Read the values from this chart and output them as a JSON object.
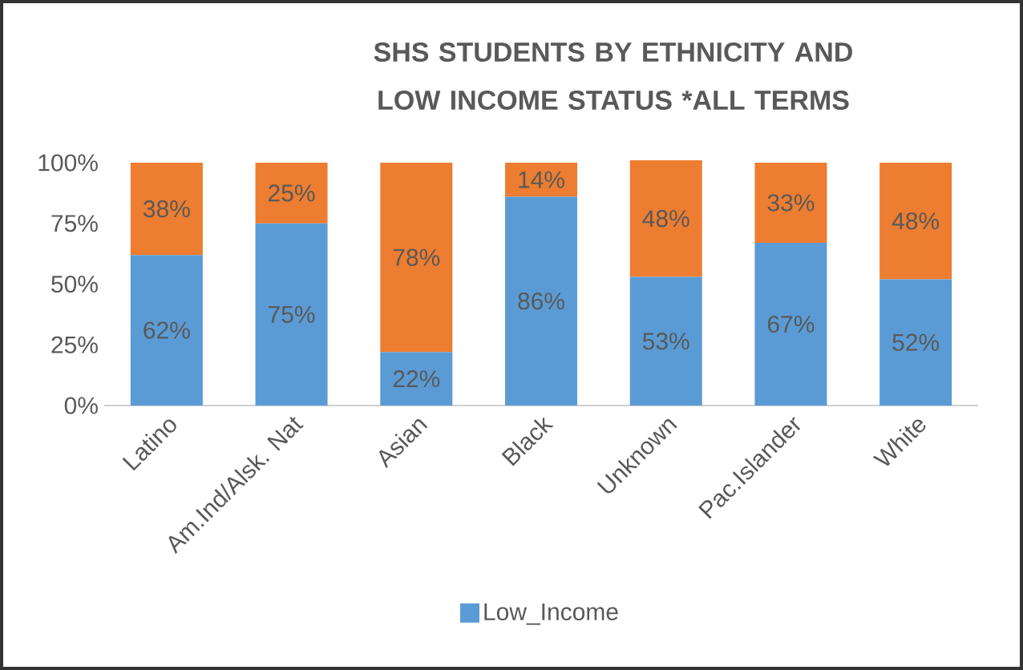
{
  "chart_data": {
    "type": "bar",
    "stacked": true,
    "title": "SHS STUDENTS BY ETHNICITY AND LOW INCOME STATUS *ALL TERMS",
    "categories": [
      "Latino",
      "Am.Ind/Alsk. Nat",
      "Asian",
      "Black",
      "Unknown",
      "Pac.Islander",
      "White"
    ],
    "series": [
      {
        "name": "Low_Income",
        "color": "#5b9bd5",
        "values": [
          62,
          75,
          22,
          86,
          53,
          67,
          52
        ],
        "value_labels": [
          "62%",
          "75%",
          "22%",
          "86%",
          "53%",
          "67%",
          "52%"
        ]
      },
      {
        "color": "#ed7d31",
        "values": [
          38,
          25,
          78,
          14,
          48,
          33,
          48
        ],
        "value_labels": [
          "38%",
          "25%",
          "78%",
          "14%",
          "48%",
          "33%",
          "48%"
        ]
      }
    ],
    "ylim": [
      0,
      101
    ],
    "yticks": [
      {
        "value": 0,
        "label": "0%"
      },
      {
        "value": 25,
        "label": "25%"
      },
      {
        "value": 50,
        "label": "50%"
      },
      {
        "value": 75,
        "label": "75%"
      },
      {
        "value": 100,
        "label": "100%"
      }
    ],
    "grid": false,
    "legend": "bottom"
  }
}
